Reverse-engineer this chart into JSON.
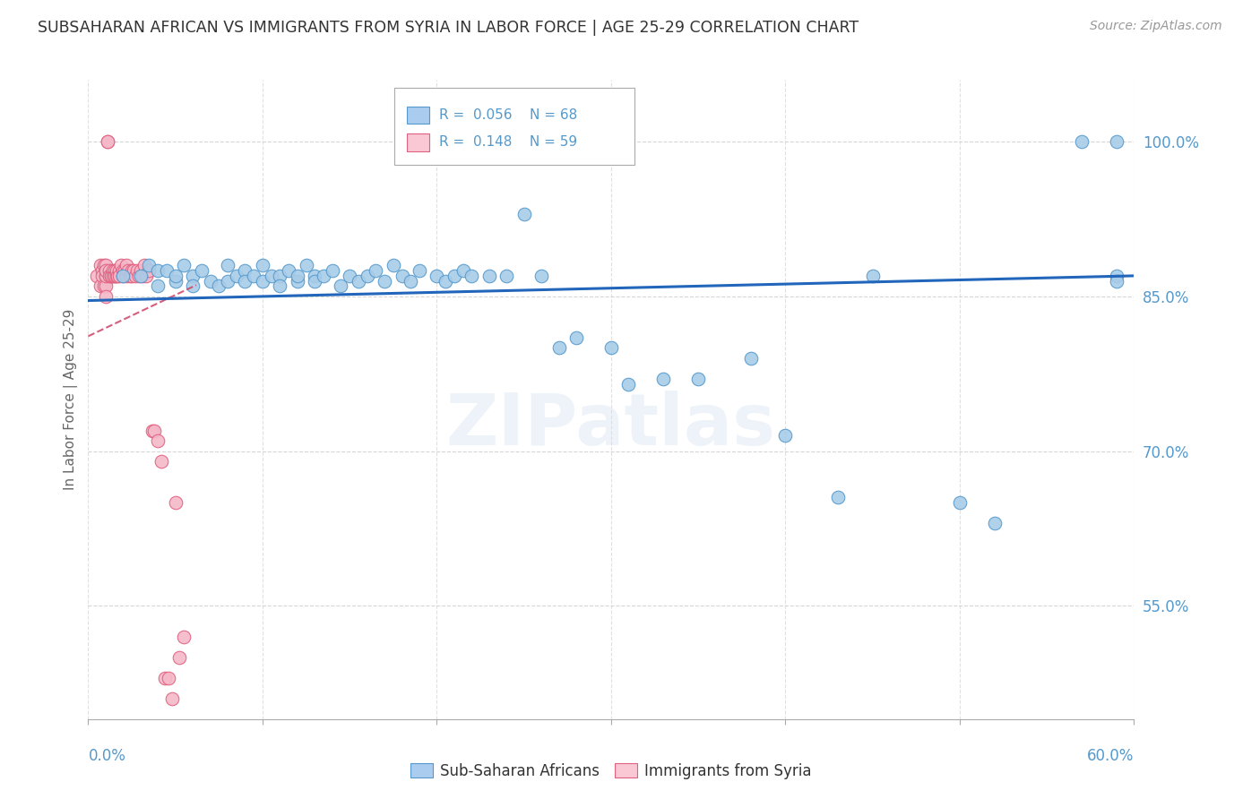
{
  "title": "SUBSAHARAN AFRICAN VS IMMIGRANTS FROM SYRIA IN LABOR FORCE | AGE 25-29 CORRELATION CHART",
  "source": "Source: ZipAtlas.com",
  "ylabel": "In Labor Force | Age 25-29",
  "xmin": 0.0,
  "xmax": 0.6,
  "ymin": 0.44,
  "ymax": 1.06,
  "blue_R": 0.056,
  "blue_N": 68,
  "pink_R": 0.148,
  "pink_N": 59,
  "blue_color": "#a8cce8",
  "pink_color": "#f4b8c8",
  "blue_edge_color": "#5599cc",
  "pink_edge_color": "#e06080",
  "blue_line_color": "#2266bb",
  "pink_line_color": "#cc4466",
  "grid_color": "#cccccc",
  "title_color": "#333333",
  "axis_label_color": "#5599cc",
  "watermark": "ZIPatlas",
  "blue_scatter_x": [
    0.02,
    0.03,
    0.035,
    0.04,
    0.04,
    0.045,
    0.05,
    0.05,
    0.055,
    0.06,
    0.06,
    0.065,
    0.07,
    0.075,
    0.08,
    0.08,
    0.085,
    0.09,
    0.09,
    0.095,
    0.1,
    0.1,
    0.105,
    0.11,
    0.11,
    0.115,
    0.12,
    0.12,
    0.125,
    0.13,
    0.13,
    0.135,
    0.14,
    0.145,
    0.15,
    0.155,
    0.16,
    0.165,
    0.17,
    0.175,
    0.18,
    0.185,
    0.19,
    0.2,
    0.205,
    0.21,
    0.215,
    0.22,
    0.23,
    0.24,
    0.25,
    0.26,
    0.27,
    0.28,
    0.3,
    0.31,
    0.33,
    0.35,
    0.38,
    0.4,
    0.43,
    0.45,
    0.5,
    0.52,
    0.57,
    0.59,
    0.59,
    0.59
  ],
  "blue_scatter_y": [
    0.87,
    0.87,
    0.88,
    0.875,
    0.86,
    0.875,
    0.865,
    0.87,
    0.88,
    0.87,
    0.86,
    0.875,
    0.865,
    0.86,
    0.865,
    0.88,
    0.87,
    0.875,
    0.865,
    0.87,
    0.865,
    0.88,
    0.87,
    0.87,
    0.86,
    0.875,
    0.865,
    0.87,
    0.88,
    0.87,
    0.865,
    0.87,
    0.875,
    0.86,
    0.87,
    0.865,
    0.87,
    0.875,
    0.865,
    0.88,
    0.87,
    0.865,
    0.875,
    0.87,
    0.865,
    0.87,
    0.875,
    0.87,
    0.87,
    0.87,
    0.93,
    0.87,
    0.8,
    0.81,
    0.8,
    0.765,
    0.77,
    0.77,
    0.79,
    0.715,
    0.655,
    0.87,
    0.65,
    0.63,
    1.0,
    1.0,
    0.87,
    0.865
  ],
  "pink_scatter_x": [
    0.005,
    0.007,
    0.007,
    0.008,
    0.008,
    0.009,
    0.009,
    0.01,
    0.01,
    0.01,
    0.01,
    0.01,
    0.01,
    0.01,
    0.011,
    0.011,
    0.012,
    0.012,
    0.013,
    0.013,
    0.014,
    0.014,
    0.015,
    0.015,
    0.015,
    0.016,
    0.016,
    0.017,
    0.018,
    0.018,
    0.019,
    0.02,
    0.02,
    0.021,
    0.022,
    0.022,
    0.023,
    0.024,
    0.025,
    0.025,
    0.026,
    0.027,
    0.028,
    0.029,
    0.03,
    0.031,
    0.032,
    0.033,
    0.035,
    0.037,
    0.038,
    0.04,
    0.042,
    0.044,
    0.046,
    0.048,
    0.05,
    0.052,
    0.055
  ],
  "pink_scatter_y": [
    0.87,
    0.88,
    0.86,
    0.875,
    0.87,
    0.88,
    0.86,
    0.87,
    0.875,
    0.88,
    0.86,
    0.85,
    0.87,
    0.875,
    1.0,
    1.0,
    0.875,
    0.87,
    0.87,
    0.87,
    0.875,
    0.87,
    0.875,
    0.87,
    0.87,
    0.87,
    0.875,
    0.87,
    0.875,
    0.87,
    0.88,
    0.875,
    0.87,
    0.875,
    0.88,
    0.87,
    0.875,
    0.87,
    0.875,
    0.87,
    0.875,
    0.87,
    0.875,
    0.87,
    0.875,
    0.87,
    0.88,
    0.87,
    0.875,
    0.72,
    0.72,
    0.71,
    0.69,
    0.48,
    0.48,
    0.46,
    0.65,
    0.5,
    0.52
  ],
  "background_color": "#ffffff",
  "legend_box_color_blue": "#aaccee",
  "legend_box_color_pink": "#f9c8d4",
  "yaxis_ticks_shown": [
    0.55,
    0.7,
    0.85,
    1.0
  ],
  "yaxis_ticks_labels": [
    "55.0%",
    "70.0%",
    "85.0%",
    "100.0%"
  ]
}
